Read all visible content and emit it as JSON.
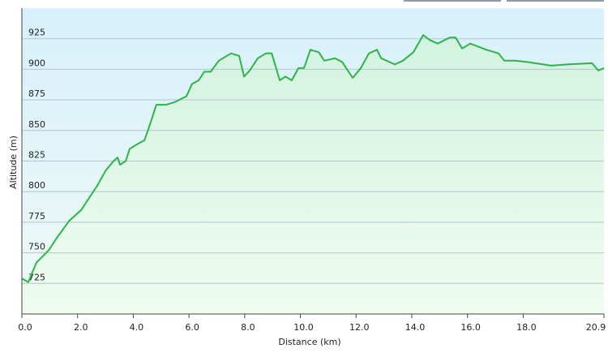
{
  "chart_data": {
    "type": "area",
    "x_label": "Distance  (km)",
    "y_label": "Altitude (m)",
    "x": [
      0,
      0.23,
      0.52,
      0.96,
      1.25,
      1.69,
      2.13,
      2.42,
      2.71,
      3.0,
      3.29,
      3.44,
      3.52,
      3.73,
      3.87,
      4.16,
      4.4,
      4.6,
      4.83,
      5.18,
      5.47,
      5.91,
      6.11,
      6.35,
      6.55,
      6.78,
      7.07,
      7.51,
      7.8,
      7.98,
      8.18,
      8.47,
      8.76,
      8.97,
      9.26,
      9.46,
      9.69,
      9.93,
      10.13,
      10.36,
      10.66,
      10.86,
      11.24,
      11.5,
      11.88,
      12.17,
      12.46,
      12.75,
      12.9,
      13.39,
      13.68,
      14.06,
      14.41,
      14.64,
      14.93,
      15.37,
      15.57,
      15.81,
      16.1,
      16.68,
      17.12,
      17.32,
      17.7,
      18.14,
      19.01,
      19.59,
      20.47,
      20.7,
      20.9
    ],
    "values": [
      729,
      726,
      742,
      752,
      762,
      776,
      785,
      795,
      805,
      817,
      825,
      828,
      822,
      825,
      835,
      839,
      842,
      855,
      871,
      871,
      873,
      878,
      888,
      891,
      898,
      898,
      907,
      913,
      911,
      894,
      899,
      909,
      913,
      913,
      891,
      894,
      891,
      901,
      901,
      916,
      914,
      907,
      909,
      906,
      893,
      901,
      913,
      916,
      909,
      904,
      907,
      914,
      928,
      924,
      921,
      926,
      926,
      917,
      921,
      916,
      913,
      907,
      907,
      906,
      903,
      904,
      905,
      899,
      901
    ],
    "color": "#2db34a",
    "xlim": [
      0,
      20.9
    ],
    "ylim": [
      700,
      950
    ],
    "xticks": [
      {
        "value": 0,
        "label": "0.0"
      },
      {
        "value": 2,
        "label": "2.0"
      },
      {
        "value": 4,
        "label": "4.0"
      },
      {
        "value": 6,
        "label": "6.0"
      },
      {
        "value": 8,
        "label": "8.0"
      },
      {
        "value": 10,
        "label": "10.0"
      },
      {
        "value": 12,
        "label": "12.0"
      },
      {
        "value": 14,
        "label": "14.0"
      },
      {
        "value": 16,
        "label": "16.0"
      },
      {
        "value": 18,
        "label": "18.0"
      },
      {
        "value": 20.9,
        "label": "20.9"
      }
    ],
    "yticks": [
      725,
      750,
      775,
      800,
      825,
      850,
      875,
      900,
      925
    ],
    "grid": true
  }
}
